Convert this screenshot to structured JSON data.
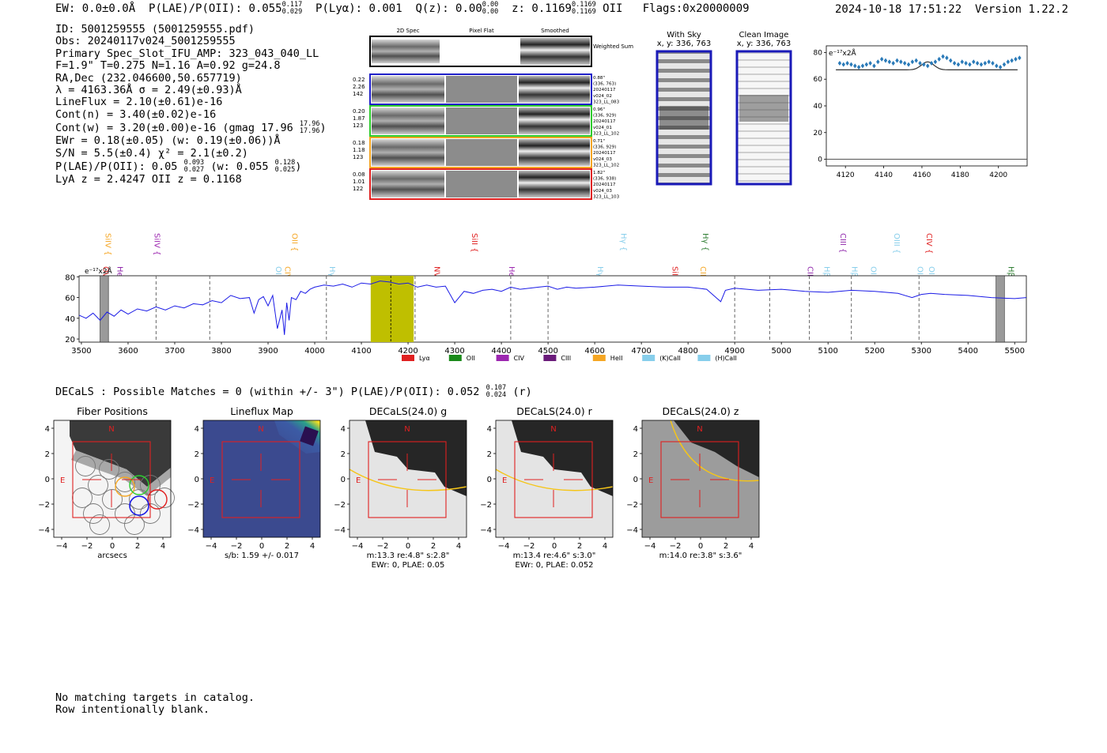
{
  "header": {
    "ew": "EW: 0.0±0.0Å",
    "plae_label": "P(LAE)/P(OII): 0.055",
    "plae_hi": "0.117",
    "plae_lo": "0.029",
    "plya": "P(Lyα): 0.001",
    "qz_label": "Q(z): 0.00",
    "qz_hi": "0.00",
    "qz_lo": "0.00",
    "z_label": "z: 0.1169",
    "z_hi": "0.1169",
    "z_lo": "0.1169",
    "z_line": "OII",
    "flags": "Flags:0x20000009",
    "datetime": "2024-10-18 17:51:22",
    "version": "Version 1.22.2"
  },
  "info": {
    "id": "ID: 5001259555 (5001259555.pdf)",
    "obs": "Obs: 20240117v024_5001259555",
    "slot": "Primary Spec_Slot_IFU_AMP: 323_043_040_LL",
    "fparams": "F=1.9\"  T=0.275  N=1.16  A=0.92  g=24.8",
    "radec": "RA,Dec (232.046600,50.657719)",
    "lambda": "λ = 4163.36Å  σ = 2.49(±0.93)Å",
    "lineflux": "LineFlux = 2.10(±0.61)e-16",
    "contn": "Cont(n) = 3.40(±0.02)e-16",
    "contw": "Cont(w) = 3.20(±0.00)e-16 (gmag 17.96",
    "contw_hi": "17.96",
    "contw_lo": "17.96",
    "ewr": "EWr = 0.18(±0.05) (w: 0.19(±0.06))Å",
    "sn": "S/N = 5.5(±0.4)  χ² = 2.1(±0.2)",
    "plae": "P(LAE)/P(OII): 0.05",
    "plae_hi": "0.093",
    "plae_lo": "0.027",
    "plae_w": "(w: 0.055",
    "plae_w_hi": "0.128",
    "plae_w_lo": "0.025",
    "lya": "LyA z = 2.4247  OII z = 0.1168"
  },
  "cutouts": {
    "col_headers": [
      "2D Spec",
      "Pixel Flat",
      "Smoothed"
    ],
    "weighted_label": "Weighted Sum",
    "rows": [
      {
        "stats": [
          "0.22",
          "2.26",
          "142"
        ],
        "meta": [
          "0.88\"",
          "(336, 763)",
          "20240117",
          "v024_02",
          "323_LL_083"
        ],
        "color": "#1f1fc8"
      },
      {
        "stats": [
          "0.20",
          "1.87",
          "123"
        ],
        "meta": [
          "0.96\"",
          "(336, 929)",
          "20240117",
          "v024_01",
          "323_LL_102"
        ],
        "color": "#2ecc2e"
      },
      {
        "stats": [
          "0.18",
          "1.18",
          "123"
        ],
        "meta": [
          "0.71\"",
          "(336, 929)",
          "20240117",
          "v024_03",
          "323_LL_102"
        ],
        "color": "#f5a623"
      },
      {
        "stats": [
          "0.08",
          "1.01",
          "122"
        ],
        "meta": [
          "1.82\"",
          "(336, 938)",
          "20240117",
          "v024_03",
          "323_LL_103"
        ],
        "color": "#e02020"
      }
    ],
    "with_sky_title": "With Sky",
    "with_sky_xy": "x, y: 336, 763",
    "clean_title": "Clean Image",
    "clean_xy": "x, y: 336, 763"
  },
  "zoom_chart": {
    "unit": "e⁻¹⁷x2Å",
    "xticks": [
      "4120",
      "4140",
      "4160",
      "4180",
      "4200"
    ],
    "yticks": [
      "0",
      "20",
      "40",
      "60",
      "80"
    ]
  },
  "chart_data": {
    "type": "line",
    "title": "",
    "ylabel": "e⁻¹⁷x2Å",
    "xlim": [
      3495,
      5525
    ],
    "ylim": [
      17,
      81
    ],
    "xticks": [
      "3500",
      "3600",
      "3700",
      "3800",
      "3900",
      "4000",
      "4100",
      "4200",
      "4300",
      "4400",
      "4500",
      "4600",
      "4700",
      "4800",
      "4900",
      "5000",
      "5100",
      "5200",
      "5300",
      "5400",
      "5500"
    ],
    "yticks": [
      "20",
      "40",
      "60",
      "80"
    ],
    "x": [
      3495,
      3510,
      3525,
      3540,
      3555,
      3570,
      3585,
      3600,
      3620,
      3640,
      3660,
      3680,
      3700,
      3720,
      3740,
      3760,
      3780,
      3800,
      3820,
      3840,
      3860,
      3870,
      3880,
      3890,
      3900,
      3910,
      3920,
      3930,
      3935,
      3940,
      3945,
      3950,
      3960,
      3970,
      3980,
      3990,
      4000,
      4020,
      4040,
      4060,
      4080,
      4100,
      4120,
      4140,
      4160,
      4180,
      4200,
      4220,
      4240,
      4260,
      4280,
      4300,
      4320,
      4340,
      4360,
      4380,
      4400,
      4420,
      4440,
      4460,
      4480,
      4500,
      4520,
      4540,
      4560,
      4600,
      4650,
      4700,
      4750,
      4800,
      4840,
      4860,
      4870,
      4880,
      4900,
      4950,
      5000,
      5050,
      5100,
      5150,
      5200,
      5250,
      5280,
      5300,
      5320,
      5350,
      5400,
      5450,
      5500,
      5525
    ],
    "y": [
      43,
      40,
      45,
      38,
      46,
      42,
      48,
      44,
      49,
      47,
      51,
      48,
      52,
      50,
      54,
      53,
      57,
      55,
      62,
      59,
      60,
      45,
      58,
      61,
      52,
      62,
      30,
      48,
      24,
      55,
      38,
      60,
      58,
      66,
      64,
      68,
      70,
      72,
      71,
      73,
      70,
      74,
      73,
      76,
      75,
      73,
      74,
      70,
      72,
      70,
      71,
      55,
      66,
      64,
      67,
      68,
      66,
      70,
      68,
      69,
      70,
      71,
      68,
      70,
      69,
      70,
      72,
      71,
      70,
      70,
      68,
      60,
      56,
      67,
      69,
      67,
      68,
      66,
      65,
      67,
      66,
      64,
      60,
      63,
      64,
      63,
      62,
      60,
      59,
      60
    ],
    "emission_lines": [
      {
        "label": "SiIV",
        "x": 3545,
        "color": "#f5a623"
      },
      {
        "label": "OVI",
        "x": 3540,
        "color": "#e02020"
      },
      {
        "label": "HeII",
        "x": 3570,
        "color": "#8e24aa"
      },
      {
        "label": "SiIV",
        "x": 3650,
        "color": "#9c27b0"
      },
      {
        "label": "OII",
        "x": 3910,
        "color": "#87ceeb"
      },
      {
        "label": "CIV",
        "x": 3930,
        "color": "#f5a623"
      },
      {
        "label": "OII",
        "x": 3945,
        "color": "#f5a623"
      },
      {
        "label": "Hγ",
        "x": 4025,
        "color": "#87ceeb"
      },
      {
        "label": "NV",
        "x": 4250,
        "color": "#e02020"
      },
      {
        "label": "SiII",
        "x": 4330,
        "color": "#e02020"
      },
      {
        "label": "HeII",
        "x": 4410,
        "color": "#9c27b0"
      },
      {
        "label": "Hγ",
        "x": 4600,
        "color": "#87ceeb"
      },
      {
        "label": "Hγ",
        "x": 4650,
        "color": "#87ceeb"
      },
      {
        "label": "SiIV",
        "x": 4760,
        "color": "#e02020"
      },
      {
        "label": "CIII",
        "x": 4820,
        "color": "#f5a623"
      },
      {
        "label": "Hγ",
        "x": 4825,
        "color": "#2e7d32"
      },
      {
        "label": "CII",
        "x": 5050,
        "color": "#8e24aa"
      },
      {
        "label": "Hβ",
        "x": 5085,
        "color": "#87ceeb"
      },
      {
        "label": "CIII",
        "x": 5120,
        "color": "#8e24aa"
      },
      {
        "label": "Hβ",
        "x": 5145,
        "color": "#87ceeb"
      },
      {
        "label": "OIII",
        "x": 5185,
        "color": "#87ceeb"
      },
      {
        "label": "OIII",
        "x": 5235,
        "color": "#87ceeb"
      },
      {
        "label": "OIII",
        "x": 5285,
        "color": "#87ceeb"
      },
      {
        "label": "OIII",
        "x": 5310,
        "color": "#87ceeb"
      },
      {
        "label": "CIV",
        "x": 5305,
        "color": "#e02020"
      },
      {
        "label": "Hβ",
        "x": 5480,
        "color": "#2e7d32"
      }
    ],
    "legend": [
      {
        "label": "Lyα",
        "color": "#e02020"
      },
      {
        "label": "OII",
        "color": "#1b8a1b"
      },
      {
        "label": "CIV",
        "color": "#9c27b0"
      },
      {
        "label": "CIII",
        "color": "#6a1b7a"
      },
      {
        "label": "HeII",
        "color": "#f5a623"
      },
      {
        "label": "(K)CaII",
        "color": "#87ceeb"
      },
      {
        "label": "(H)CaII",
        "color": "#87ceeb"
      }
    ]
  },
  "decals_line": {
    "text": "DECaLS : Possible Matches = 0 (within +/- 3\")  P(LAE)/P(OII): 0.052",
    "hi": "0.107",
    "lo": "0.024",
    "band": "(r)"
  },
  "panels": [
    {
      "title": "Fiber Positions",
      "caption1": "arcsecs",
      "caption2": ""
    },
    {
      "title": "Lineflux Map",
      "caption1": "s/b: 1.59 +/- 0.017",
      "caption2": ""
    },
    {
      "title": "DECaLS(24.0) g",
      "caption1": "m:13.3  re:4.8\"  s:2.8\"",
      "caption2": "EWr: 0, PLAE: 0.05"
    },
    {
      "title": "DECaLS(24.0) r",
      "caption1": "m:13.4  re:4.6\"  s:3.0\"",
      "caption2": "EWr: 0, PLAE: 0.052"
    },
    {
      "title": "DECaLS(24.0) z",
      "caption1": "m:14.0  re:3.8\"  s:3.6\"",
      "caption2": ""
    }
  ],
  "panel_ticks": {
    "x": [
      "−4",
      "−2",
      "0",
      "2",
      "4"
    ],
    "y": [
      "4",
      "2",
      "0",
      "−2",
      "−4"
    ],
    "north": "N",
    "east": "E"
  },
  "catalog": {
    "line1": "No matching targets in catalog.",
    "line2": "Row intentionally blank."
  }
}
